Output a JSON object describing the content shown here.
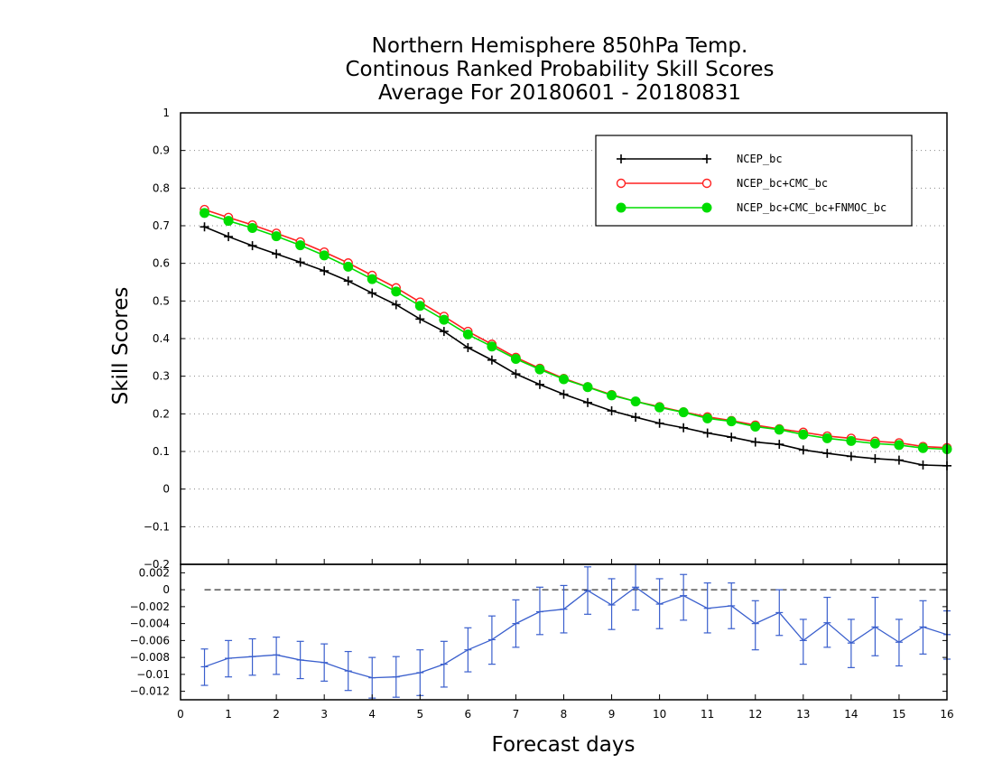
{
  "chart_data": [
    {
      "type": "line",
      "title_lines": [
        "Northern Hemisphere 850hPa Temp.",
        "Continous Ranked Probability Skill Scores",
        "Average For 20180601 - 20180831"
      ],
      "xlabel": "Forecast days",
      "ylabel": "Skill Scores",
      "xlim": [
        0,
        16
      ],
      "ylim": [
        -0.2,
        1
      ],
      "x_ticks": [
        "0",
        "1",
        "2",
        "3",
        "4",
        "5",
        "6",
        "7",
        "8",
        "9",
        "10",
        "11",
        "12",
        "13",
        "14",
        "15",
        "16"
      ],
      "y_ticks": [
        "-0.2",
        "-0.1",
        "0",
        "0.1",
        "0.2",
        "0.3",
        "0.4",
        "0.5",
        "0.6",
        "0.7",
        "0.8",
        "0.9",
        "1"
      ],
      "y_grid": "dotted",
      "legend_position": "top-right",
      "x": [
        0.5,
        1,
        1.5,
        2,
        2.5,
        3,
        3.5,
        4,
        4.5,
        5,
        5.5,
        6,
        6.5,
        7,
        7.5,
        8,
        8.5,
        9,
        9.5,
        10,
        10.5,
        11,
        11.5,
        12,
        12.5,
        13,
        13.5,
        14,
        14.5,
        15,
        15.5,
        16
      ],
      "series": [
        {
          "name": "NCEP_bc",
          "color": "#000000",
          "marker": "plus",
          "values": [
            0.697,
            0.671,
            0.647,
            0.625,
            0.603,
            0.58,
            0.553,
            0.521,
            0.49,
            0.452,
            0.419,
            0.376,
            0.343,
            0.306,
            0.278,
            0.252,
            0.23,
            0.208,
            0.191,
            0.175,
            0.163,
            0.149,
            0.138,
            0.125,
            0.119,
            0.104,
            0.095,
            0.087,
            0.081,
            0.077,
            0.064,
            0.062
          ]
        },
        {
          "name": "NCEP_bc+CMC_bc",
          "color": "#ff2020",
          "marker": "open-circle",
          "values": [
            0.743,
            0.722,
            0.702,
            0.68,
            0.657,
            0.63,
            0.601,
            0.568,
            0.535,
            0.497,
            0.459,
            0.419,
            0.385,
            0.35,
            0.321,
            0.294,
            0.272,
            0.251,
            0.233,
            0.219,
            0.205,
            0.192,
            0.182,
            0.17,
            0.16,
            0.151,
            0.141,
            0.135,
            0.127,
            0.123,
            0.113,
            0.11
          ]
        },
        {
          "name": "NCEP_bc+CMC_bc+FNMOC_bc",
          "color": "#00dd00",
          "marker": "filled-circle",
          "values": [
            0.734,
            0.713,
            0.694,
            0.672,
            0.648,
            0.621,
            0.591,
            0.558,
            0.525,
            0.487,
            0.45,
            0.411,
            0.379,
            0.346,
            0.318,
            0.292,
            0.271,
            0.249,
            0.233,
            0.217,
            0.204,
            0.188,
            0.18,
            0.166,
            0.158,
            0.145,
            0.135,
            0.128,
            0.121,
            0.117,
            0.109,
            0.106
          ]
        }
      ]
    },
    {
      "type": "line",
      "xlim": [
        0,
        16
      ],
      "ylim": [
        -0.013,
        0.003
      ],
      "y_ticks": [
        "0.002",
        "0",
        "-0.002",
        "-0.004",
        "-0.006",
        "-0.008",
        "-0.01",
        "-0.012"
      ],
      "zero_line": "dashed",
      "x": [
        0.5,
        1,
        1.5,
        2,
        2.5,
        3,
        3.5,
        4,
        4.5,
        5,
        5.5,
        6,
        6.5,
        7,
        7.5,
        8,
        8.5,
        9,
        9.5,
        10,
        10.5,
        11,
        11.5,
        12,
        12.5,
        13,
        13.5,
        14,
        14.5,
        15,
        15.5,
        16
      ],
      "series": [
        {
          "color": "#3a5fcd",
          "marker": "plus",
          "values": [
            -0.0091,
            -0.0081,
            -0.0079,
            -0.0077,
            -0.0083,
            -0.0086,
            -0.0096,
            -0.0104,
            -0.0103,
            -0.0098,
            -0.0088,
            -0.0071,
            -0.0059,
            -0.004,
            -0.0026,
            -0.0023,
            -0.0001,
            -0.0018,
            0.0003,
            -0.0017,
            -0.0007,
            -0.0022,
            -0.0019,
            -0.004,
            -0.0027,
            -0.006,
            -0.0039,
            -0.0063,
            -0.0044,
            -0.0062,
            -0.0044,
            -0.0053
          ],
          "err_low": [
            -0.0113,
            -0.0103,
            -0.0101,
            -0.01,
            -0.0105,
            -0.0108,
            -0.0119,
            -0.0128,
            -0.0127,
            -0.0125,
            -0.0115,
            -0.0097,
            -0.0088,
            -0.0068,
            -0.0053,
            -0.0051,
            -0.0029,
            -0.0047,
            -0.0024,
            -0.0046,
            -0.0036,
            -0.0051,
            -0.0046,
            -0.0071,
            -0.0054,
            -0.0088,
            -0.0068,
            -0.0092,
            -0.0078,
            -0.009,
            -0.0076,
            -0.0082
          ],
          "err_high": [
            -0.007,
            -0.006,
            -0.0058,
            -0.0056,
            -0.0061,
            -0.0064,
            -0.0073,
            -0.008,
            -0.0079,
            -0.0071,
            -0.0061,
            -0.0045,
            -0.0031,
            -0.0012,
            0.0003,
            0.0005,
            0.0027,
            0.0013,
            0.003,
            0.0013,
            0.0018,
            0.0008,
            0.0008,
            -0.0013,
            0.0,
            -0.0035,
            -0.0009,
            -0.0035,
            -0.0009,
            -0.0035,
            -0.0013,
            -0.0025
          ]
        }
      ]
    }
  ]
}
